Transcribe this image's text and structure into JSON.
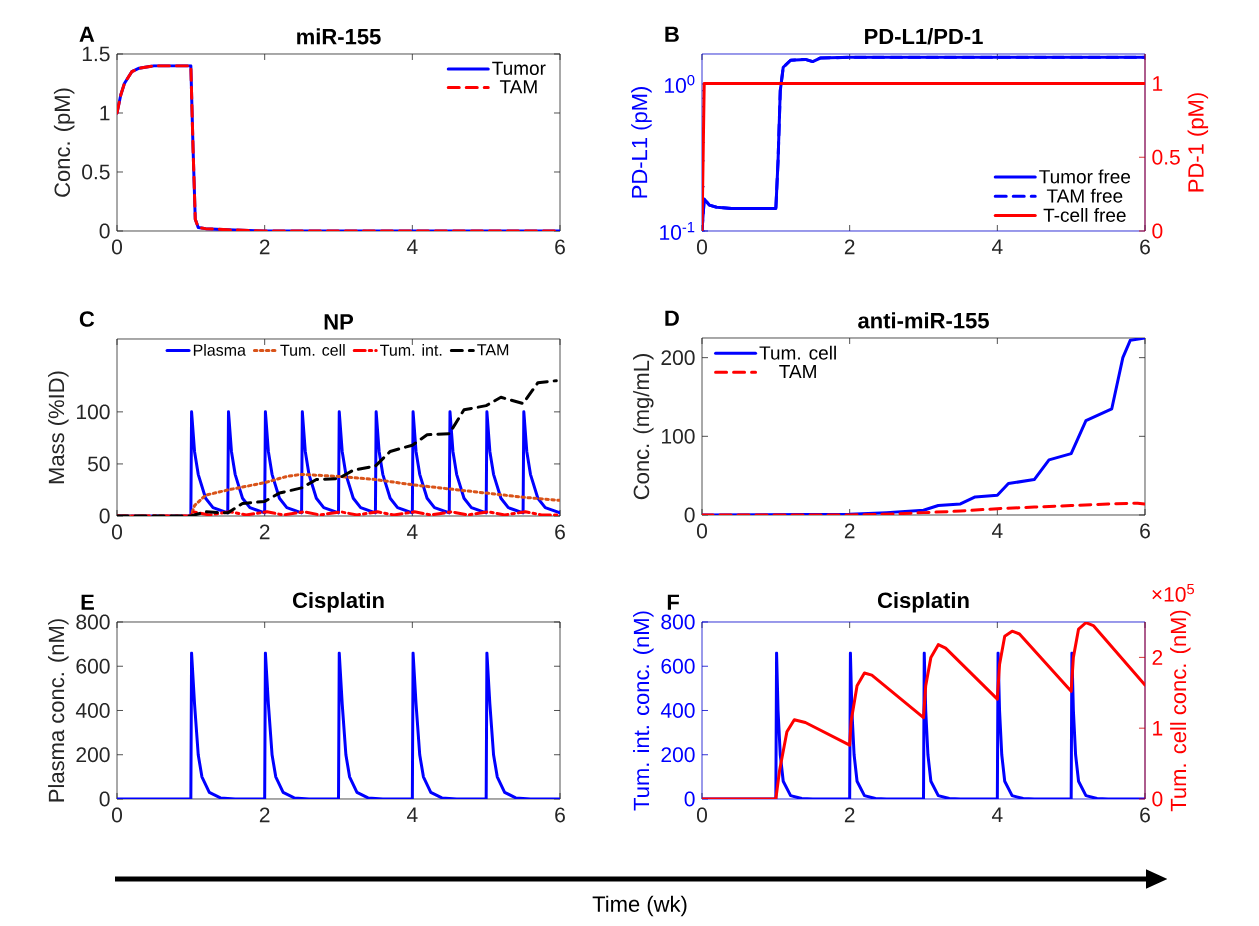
{
  "chart_data": [
    {
      "type": "line",
      "title": "miR-155",
      "ylabel": "Conc. (pM)",
      "xlim": [
        0,
        6
      ],
      "xticks": [
        0,
        2,
        4,
        6
      ],
      "ylim": [
        0,
        1.5
      ],
      "yticks": [
        0,
        0.5,
        1,
        1.5
      ],
      "legend": "top right",
      "annotations": [
        "A"
      ],
      "series": [
        {
          "name": "Tumor",
          "color": "#0000ff",
          "line_style": "solid",
          "x": [
            0,
            0.05,
            0.1,
            0.2,
            0.3,
            0.5,
            0.8,
            1,
            1.03,
            1.06,
            1.1,
            1.2,
            1.5,
            2,
            6
          ],
          "values": [
            1,
            1.15,
            1.25,
            1.35,
            1.38,
            1.4,
            1.4,
            1.4,
            0.7,
            0.1,
            0.03,
            0.02,
            0.01,
            0,
            0
          ]
        },
        {
          "name": "TAM",
          "color": "#ff0000",
          "line_style": "dashed",
          "x": [
            0,
            0.05,
            0.1,
            0.2,
            0.3,
            0.5,
            0.8,
            1,
            1.03,
            1.06,
            1.1,
            1.2,
            1.5,
            2,
            6
          ],
          "values": [
            1,
            1.15,
            1.25,
            1.35,
            1.38,
            1.4,
            1.4,
            1.4,
            0.7,
            0.1,
            0.03,
            0.02,
            0.01,
            0,
            0
          ]
        }
      ]
    },
    {
      "type": "line",
      "title": "PD-L1/PD-1",
      "ylabel": "PD-L1 (pM)",
      "y2label": "PD-1 (pM)",
      "log": "y",
      "xlim": [
        0,
        6
      ],
      "xticks": [
        0,
        2,
        4,
        6
      ],
      "ylim": [
        0.1,
        1.6
      ],
      "yticks": [
        {
          "value": 0.1,
          "label": "10$^{-1}$"
        },
        {
          "value": 1,
          "label": "10$^{0}$"
        }
      ],
      "y2lim": [
        0,
        1.2
      ],
      "y2ticks": [
        0,
        0.5,
        1
      ],
      "legend": "bottom right",
      "annotations": [
        "B"
      ],
      "series": [
        {
          "name": "Tumor free",
          "color": "#0000ff",
          "line_style": "solid",
          "x": [
            0,
            0.03,
            0.1,
            0.2,
            0.4,
            0.7,
            1,
            1.03,
            1.06,
            1.1,
            1.2,
            1.4,
            1.5,
            1.6,
            2,
            3,
            6
          ],
          "values": [
            0.1,
            0.165,
            0.15,
            0.145,
            0.142,
            0.142,
            0.142,
            0.3,
            0.9,
            1.3,
            1.45,
            1.47,
            1.42,
            1.5,
            1.52,
            1.52,
            1.52
          ]
        },
        {
          "name": "TAM free",
          "color": "#0000ff",
          "line_style": "dashed",
          "x": [
            0,
            0.03,
            0.1,
            0.2,
            0.4,
            0.7,
            1,
            1.03,
            1.06,
            1.1,
            1.2,
            1.4,
            1.5,
            1.6,
            2,
            3,
            6
          ],
          "values": [
            0.1,
            0.165,
            0.15,
            0.145,
            0.142,
            0.142,
            0.142,
            0.3,
            0.9,
            1.3,
            1.45,
            1.47,
            1.42,
            1.5,
            1.52,
            1.52,
            1.52
          ]
        },
        {
          "name": "T-cell free",
          "color": "#ff0000",
          "line_style": "solid",
          "axis": "y2",
          "x": [
            0,
            0.03,
            0.1,
            6
          ],
          "values": [
            0,
            1,
            1,
            1
          ]
        }
      ]
    },
    {
      "type": "line",
      "title": "NP",
      "ylabel": "Mass (%ID)",
      "xlim": [
        0,
        6
      ],
      "xticks": [
        0,
        2,
        4,
        6
      ],
      "ylim": [
        0,
        170
      ],
      "yticks": [
        0,
        50,
        100
      ],
      "legend": "top",
      "annotations": [
        "C"
      ],
      "series": [
        {
          "name": "Plasma",
          "color": "#0000ff",
          "line_style": "solid",
          "x": [
            0,
            1,
            1.01,
            1.05,
            1.1,
            1.2,
            1.3,
            1.5,
            1.51,
            1.55,
            1.6,
            1.7,
            1.8,
            2,
            2.01,
            2.05,
            2.1,
            2.2,
            2.3,
            2.5,
            2.51,
            2.55,
            2.6,
            2.7,
            2.8,
            3,
            3.01,
            3.05,
            3.1,
            3.2,
            3.3,
            3.5,
            3.51,
            3.55,
            3.6,
            3.7,
            3.8,
            4,
            4.01,
            4.05,
            4.1,
            4.2,
            4.3,
            4.5,
            4.51,
            4.55,
            4.6,
            4.7,
            4.8,
            5,
            5.01,
            5.05,
            5.1,
            5.2,
            5.3,
            5.5,
            5.51,
            5.55,
            5.6,
            5.7,
            5.8,
            6
          ],
          "values": [
            0,
            0,
            100,
            62,
            40,
            17,
            8,
            3,
            100,
            62,
            40,
            17,
            8,
            3,
            100,
            62,
            40,
            17,
            8,
            3,
            100,
            62,
            40,
            17,
            8,
            3,
            100,
            62,
            40,
            17,
            8,
            3,
            100,
            62,
            40,
            17,
            8,
            3,
            100,
            62,
            40,
            17,
            8,
            3,
            100,
            62,
            40,
            17,
            8,
            3,
            100,
            62,
            40,
            17,
            8,
            3,
            100,
            62,
            40,
            17,
            8,
            3
          ]
        },
        {
          "name": "Tum. cell",
          "color": "#d95319",
          "line_style": "dotted",
          "x": [
            0,
            1,
            1.05,
            1.2,
            1.5,
            2,
            2.3,
            2.5,
            3,
            3.5,
            4,
            4.5,
            5,
            5.5,
            6
          ],
          "values": [
            0,
            0,
            10,
            20,
            25,
            32,
            38,
            40,
            38,
            35,
            30,
            26,
            22,
            18,
            15
          ]
        },
        {
          "name": "Tum. int.",
          "color": "#ff0000",
          "line_style": "dashdot",
          "x": [
            0,
            1,
            1.03,
            1.25,
            1.53,
            1.75,
            2.03,
            2.25,
            2.53,
            2.75,
            3.03,
            3.25,
            3.53,
            3.75,
            4.03,
            4.25,
            4.53,
            4.75,
            5.03,
            5.25,
            5.53,
            5.75,
            6
          ],
          "values": [
            0,
            0,
            4,
            1,
            4,
            1,
            4,
            1,
            4,
            1,
            4,
            1,
            4,
            1,
            4,
            1,
            4,
            1,
            4,
            1,
            4,
            1,
            1
          ]
        },
        {
          "name": "TAM",
          "color": "#000000",
          "line_style": "dashed",
          "x": [
            0,
            1,
            1.2,
            1.5,
            1.7,
            2,
            2.2,
            2.5,
            2.7,
            3,
            3.2,
            3.5,
            3.7,
            4,
            4.2,
            4.5,
            4.7,
            5,
            5.2,
            5.5,
            5.7,
            5.95
          ],
          "values": [
            0,
            0,
            4,
            3,
            12,
            14,
            22,
            27,
            35,
            36,
            44,
            48,
            62,
            68,
            78,
            79,
            102,
            106,
            114,
            108,
            128,
            130
          ]
        }
      ]
    },
    {
      "type": "line",
      "title": "anti-miR-155",
      "ylabel": "Conc. (mg/mL)",
      "xlim": [
        0,
        6
      ],
      "xticks": [
        0,
        2,
        4,
        6
      ],
      "ylim": [
        0,
        225
      ],
      "yticks": [
        0,
        100,
        200
      ],
      "legend": "top left",
      "annotations": [
        "D"
      ],
      "series": [
        {
          "name": "Tum. cell",
          "color": "#0000ff",
          "line_style": "solid",
          "x": [
            0,
            2,
            2.5,
            3,
            3.2,
            3.5,
            3.7,
            4,
            4.15,
            4.5,
            4.7,
            5,
            5.2,
            5.55,
            5.7,
            5.8,
            6
          ],
          "values": [
            0,
            1,
            3,
            6,
            12,
            14,
            23,
            25,
            40,
            45,
            70,
            78,
            120,
            135,
            200,
            222,
            225
          ]
        },
        {
          "name": "TAM",
          "color": "#ff0000",
          "line_style": "dashed",
          "x": [
            0,
            2,
            2.5,
            3,
            3.5,
            4,
            4.5,
            5,
            5.5,
            5.9,
            6
          ],
          "values": [
            0,
            0,
            1,
            3,
            5,
            8,
            10,
            12,
            14,
            15,
            14
          ]
        }
      ]
    },
    {
      "type": "line",
      "title": "Cisplatin",
      "ylabel": "Plasma conc. (nM)",
      "xlim": [
        0,
        6
      ],
      "xticks": [
        0,
        2,
        4,
        6
      ],
      "ylim": [
        0,
        800
      ],
      "yticks": [
        0,
        200,
        400,
        600,
        800
      ],
      "annotations": [
        "E",
        "Time (wk)"
      ],
      "series": [
        {
          "color": "#0000ff",
          "line_style": "solid",
          "x": [
            0,
            1,
            1.01,
            1.05,
            1.1,
            1.15,
            1.25,
            1.4,
            1.6,
            2,
            2.01,
            2.05,
            2.1,
            2.15,
            2.25,
            2.4,
            2.6,
            3,
            3.01,
            3.05,
            3.1,
            3.15,
            3.25,
            3.4,
            3.6,
            4,
            4.01,
            4.05,
            4.1,
            4.15,
            4.25,
            4.4,
            4.6,
            5,
            5.01,
            5.05,
            5.1,
            5.15,
            5.25,
            5.4,
            5.6,
            6
          ],
          "values": [
            0,
            0,
            660,
            430,
            200,
            100,
            30,
            5,
            0,
            0,
            660,
            430,
            200,
            100,
            30,
            5,
            0,
            0,
            660,
            430,
            200,
            100,
            30,
            5,
            0,
            0,
            660,
            430,
            200,
            100,
            30,
            5,
            0,
            0,
            660,
            430,
            200,
            100,
            30,
            5,
            0,
            0
          ]
        }
      ]
    },
    {
      "type": "line",
      "title": "Cisplatin",
      "ylabel": "Tum. int. conc. (nM)",
      "y2label": "Tum. cell conc. (nM)",
      "xlim": [
        0,
        6
      ],
      "xticks": [
        0,
        2,
        4,
        6
      ],
      "ylim": [
        0,
        800
      ],
      "yticks": [
        0,
        200,
        400,
        600,
        800
      ],
      "y2lim": [
        0,
        2.5
      ],
      "y2ticks": [
        0,
        1,
        2
      ],
      "annotations": [
        "F",
        "×10$^{5}$"
      ],
      "series": [
        {
          "color": "#0000ff",
          "line_style": "solid",
          "x": [
            0,
            1,
            1.01,
            1.03,
            1.06,
            1.1,
            1.2,
            1.35,
            1.5,
            2,
            2.01,
            2.03,
            2.06,
            2.1,
            2.2,
            2.35,
            2.5,
            3,
            3.01,
            3.03,
            3.06,
            3.1,
            3.2,
            3.35,
            3.5,
            4,
            4.01,
            4.03,
            4.06,
            4.1,
            4.2,
            4.35,
            4.5,
            5,
            5.01,
            5.03,
            5.06,
            5.1,
            5.2,
            5.35,
            5.5,
            6
          ],
          "values": [
            0,
            0,
            660,
            400,
            200,
            80,
            15,
            2,
            0,
            0,
            660,
            400,
            200,
            80,
            15,
            2,
            0,
            0,
            660,
            400,
            200,
            80,
            15,
            2,
            0,
            0,
            660,
            400,
            200,
            80,
            15,
            2,
            0,
            0,
            660,
            400,
            200,
            80,
            15,
            2,
            0,
            0
          ]
        },
        {
          "color": "#ff0000",
          "line_style": "solid",
          "axis": "y2",
          "x": [
            0,
            1,
            1.05,
            1.15,
            1.25,
            1.4,
            2,
            2.02,
            2.1,
            2.2,
            2.3,
            3,
            3.03,
            3.1,
            3.2,
            3.3,
            4,
            4.03,
            4.1,
            4.2,
            4.3,
            5,
            5.03,
            5.1,
            5.2,
            5.3,
            6
          ],
          "values": [
            0,
            0,
            0.4,
            0.95,
            1.12,
            1.08,
            0.76,
            1.1,
            1.6,
            1.78,
            1.75,
            1.15,
            1.6,
            2,
            2.18,
            2.13,
            1.41,
            1.9,
            2.3,
            2.37,
            2.33,
            1.52,
            2,
            2.4,
            2.49,
            2.45,
            1.61
          ]
        }
      ]
    }
  ]
}
